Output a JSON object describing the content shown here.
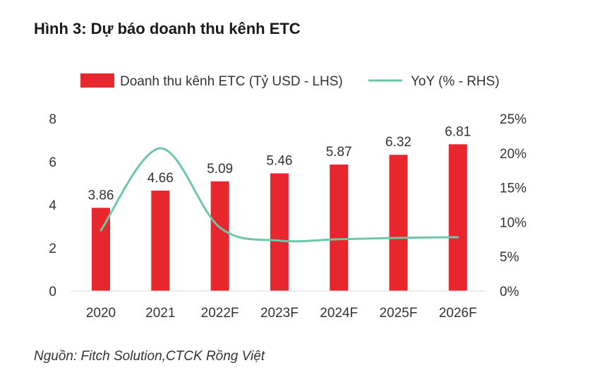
{
  "title": "Hình 3: Dự báo doanh thu kênh ETC",
  "source": "Nguồn: Fitch Solution,CTCK Rồng Việt",
  "colors": {
    "bar": "#e8262d",
    "line": "#6cc7a9"
  },
  "chart_data": {
    "type": "bar",
    "categories": [
      "2020",
      "2021",
      "2022F",
      "2023F",
      "2024F",
      "2025F",
      "2026F"
    ],
    "series": [
      {
        "name": "Doanh thu kênh ETC (Tỷ USD - LHS)",
        "type": "bar",
        "axis": "left",
        "values": [
          3.86,
          4.66,
          5.09,
          5.46,
          5.87,
          6.32,
          6.81
        ],
        "labels": [
          "3.86",
          "4.66",
          "5.09",
          "5.46",
          "5.87",
          "6.32",
          "6.81"
        ]
      },
      {
        "name": "YoY (% - RHS)",
        "type": "line",
        "axis": "right",
        "values": [
          8.8,
          20.7,
          9.2,
          7.3,
          7.5,
          7.7,
          7.8
        ]
      }
    ],
    "y_left": {
      "min": 0,
      "max": 8,
      "ticks": [
        "0",
        "2",
        "4",
        "6",
        "8"
      ]
    },
    "y_right": {
      "min": 0,
      "max": 25,
      "ticks": [
        "0%",
        "5%",
        "10%",
        "15%",
        "20%",
        "25%"
      ]
    },
    "grid": false,
    "legend": "top"
  }
}
